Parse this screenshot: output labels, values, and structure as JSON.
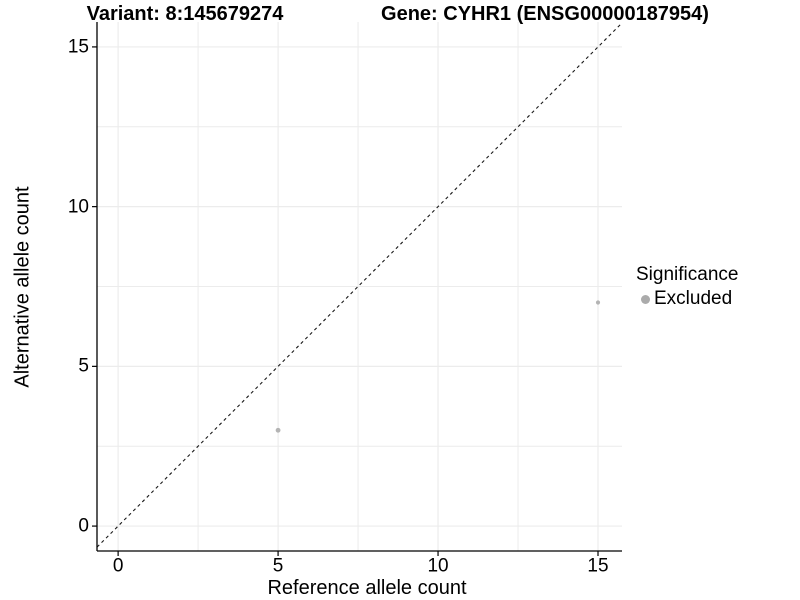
{
  "chart_data": {
    "type": "scatter",
    "title_variant": "Variant: 8:145679274",
    "title_gene": "Gene: CYHR1 (ENSG00000187954)",
    "xlabel": "Reference allele count",
    "ylabel": "Alternative allele count",
    "xlim": [
      -0.66,
      15.75
    ],
    "ylim": [
      -0.78,
      15.78
    ],
    "x_ticks": [
      0,
      5,
      10,
      15
    ],
    "y_ticks": [
      0,
      5,
      10,
      15
    ],
    "x_minor_ticks": [
      2.5,
      7.5,
      12.5
    ],
    "y_minor_ticks": [
      2.5,
      7.5,
      12.5
    ],
    "grid": true,
    "identity_line": {
      "slope": 1,
      "intercept": 0,
      "style": "dashed"
    },
    "points": [
      {
        "x": 5,
        "y": 3,
        "group": "Excluded",
        "radius_px": 2.4
      },
      {
        "x": 15,
        "y": 7,
        "group": "Excluded",
        "radius_px": 2.1
      }
    ],
    "legend": {
      "title": "Significance",
      "position": "right",
      "items": [
        {
          "label": "Excluded",
          "color": "#ababab"
        }
      ]
    },
    "colors": {
      "point": "#b4b4b4",
      "grid": "#ececec",
      "axis": "#000000",
      "identity_line": "#1a1a1a",
      "text": "#000000"
    }
  }
}
